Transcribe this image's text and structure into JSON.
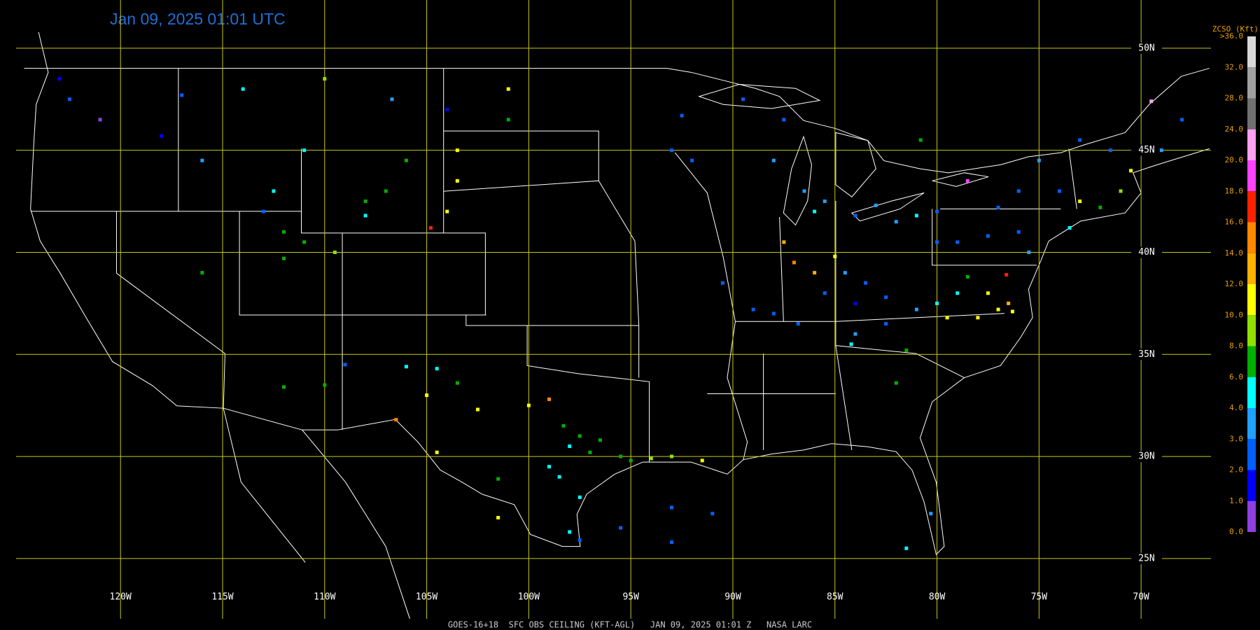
{
  "title": "Jan 09, 2025 01:01 UTC",
  "caption": "GOES-16+18  SFC OBS CEILING (KFT-AGL)   JAN 09, 2025 01:01 Z   NASA LARC",
  "map": {
    "lon_ticks": [
      {
        "value": -120,
        "label": "120W"
      },
      {
        "value": -115,
        "label": "115W"
      },
      {
        "value": -110,
        "label": "110W"
      },
      {
        "value": -105,
        "label": "105W"
      },
      {
        "value": -100,
        "label": "100W"
      },
      {
        "value": -95,
        "label": "95W"
      },
      {
        "value": -90,
        "label": "90W"
      },
      {
        "value": -85,
        "label": "85W"
      },
      {
        "value": -80,
        "label": "80W"
      },
      {
        "value": -75,
        "label": "75W"
      },
      {
        "value": -70,
        "label": "70W"
      }
    ],
    "lat_ticks": [
      {
        "value": 50,
        "label": "50N"
      },
      {
        "value": 45,
        "label": "45N"
      },
      {
        "value": 40,
        "label": "40N"
      },
      {
        "value": 35,
        "label": "35N"
      },
      {
        "value": 30,
        "label": "30N"
      },
      {
        "value": 25,
        "label": "25N"
      }
    ]
  },
  "legend": {
    "title": "ZCSO (Kft)",
    "ticks": [
      {
        "value": 36,
        "label": ">36.0"
      },
      {
        "value": 32,
        "label": "32.0"
      },
      {
        "value": 28,
        "label": "28.0"
      },
      {
        "value": 24,
        "label": "24.0"
      },
      {
        "value": 20,
        "label": "20.0"
      },
      {
        "value": 18,
        "label": "18.0"
      },
      {
        "value": 16,
        "label": "16.0"
      },
      {
        "value": 14,
        "label": "14.0"
      },
      {
        "value": 12,
        "label": "12.0"
      },
      {
        "value": 10,
        "label": "10.0"
      },
      {
        "value": 8,
        "label": "8.0"
      },
      {
        "value": 6,
        "label": "6.0"
      },
      {
        "value": 4,
        "label": "4.0"
      },
      {
        "value": 3,
        "label": "3.0"
      },
      {
        "value": 2,
        "label": "2.0"
      },
      {
        "value": 1,
        "label": "1.0"
      },
      {
        "value": 0,
        "label": "0.0"
      }
    ],
    "colors": [
      "#d8d8d8",
      "#a0a0a0",
      "#707070",
      "#ffa0f0",
      "#ff40ff",
      "#ff2000",
      "#ff8800",
      "#ffb000",
      "#ffff00",
      "#90e000",
      "#00b000",
      "#00ffff",
      "#20a0ff",
      "#0060ff",
      "#0000ff",
      "#9040e0"
    ]
  },
  "stations": {
    "lon": [
      -98.3,
      -97.5,
      -96.5,
      -95.5,
      -95.0,
      -97.0,
      -98.0,
      -99.0,
      -98.5,
      -97.5,
      -98.0,
      -97.5,
      -94.0,
      -93.0,
      -91.5,
      -100.0,
      -99.0,
      -102.5,
      -106.5,
      -104.5,
      -101.5,
      -109.0,
      -106.0,
      -104.5,
      -103.5,
      -105.0,
      -112.0,
      -110.0,
      -112.0,
      -111.0,
      -112.0,
      -116.0,
      -108.0,
      -107.0,
      -106.0,
      -104.0,
      -103.5,
      -104.8,
      -108.0,
      -109.5,
      -111.0,
      -112.5,
      -113.0,
      -116.0,
      -118.0,
      -121.0,
      -122.5,
      -123.0,
      -117.0,
      -114.0,
      -110.0,
      -106.7,
      -104.0,
      -101.0,
      -101.0,
      -103.5,
      -92.5,
      -93.0,
      -92.0,
      -89.5,
      -87.5,
      -88.0,
      -86.5,
      -86.0,
      -85.5,
      -84.0,
      -83.0,
      -82.0,
      -81.0,
      -80.0,
      -87.5,
      -87.0,
      -86.0,
      -85.0,
      -84.5,
      -83.5,
      -82.5,
      -84.0,
      -85.5,
      -86.8,
      -88.0,
      -89.0,
      -90.5,
      -84.0,
      -82.5,
      -81.0,
      -80.0,
      -79.0,
      -78.5,
      -77.5,
      -77.0,
      -76.5,
      -78.0,
      -79.5,
      -76.6,
      -76.3,
      -81.5,
      -84.2,
      -80.0,
      -79.0,
      -77.5,
      -76.0,
      -75.5,
      -77.0,
      -76.0,
      -74.0,
      -73.0,
      -72.0,
      -71.0,
      -70.5,
      -69.0,
      -68.0,
      -71.5,
      -73.5,
      -73.0,
      -75.0,
      -78.5,
      -80.8,
      -69.5,
      -82.0,
      -80.3,
      -81.5,
      -93.0,
      -95.5,
      -93.0,
      -91.0,
      -101.5
    ],
    "lat": [
      31.5,
      31.0,
      30.8,
      30.0,
      29.8,
      30.2,
      30.5,
      29.5,
      29.0,
      28.0,
      26.3,
      25.9,
      29.9,
      30.0,
      29.8,
      32.5,
      32.8,
      32.3,
      31.8,
      30.2,
      27.0,
      34.5,
      34.4,
      34.3,
      33.6,
      33.0,
      33.4,
      33.5,
      41.0,
      40.5,
      39.7,
      39.0,
      42.5,
      43.0,
      44.5,
      42.0,
      43.5,
      41.2,
      41.8,
      40.0,
      45.0,
      43.0,
      42.0,
      44.5,
      45.7,
      46.5,
      47.5,
      48.5,
      47.7,
      48.0,
      48.5,
      47.5,
      47.0,
      48.0,
      46.5,
      45.0,
      46.7,
      45.0,
      44.5,
      47.5,
      46.5,
      44.5,
      43.0,
      42.0,
      42.5,
      41.8,
      42.3,
      41.5,
      41.8,
      42.0,
      40.5,
      39.5,
      39.0,
      39.8,
      39.0,
      38.5,
      37.8,
      37.5,
      38.0,
      36.5,
      37.0,
      37.2,
      38.5,
      36.0,
      36.5,
      37.2,
      37.5,
      38.0,
      38.8,
      38.0,
      37.2,
      37.5,
      36.8,
      36.8,
      38.9,
      37.1,
      35.2,
      35.5,
      40.5,
      40.5,
      40.8,
      41.0,
      40.0,
      42.2,
      43.0,
      43.0,
      42.5,
      42.2,
      43.0,
      44.0,
      45.0,
      46.5,
      45.0,
      41.2,
      45.5,
      44.5,
      43.5,
      45.5,
      47.4,
      33.6,
      27.2,
      25.5,
      27.5,
      26.5,
      25.8,
      27.2,
      28.9
    ],
    "ceiling": [
      7,
      7,
      7,
      7,
      7,
      6.5,
      5,
      5,
      4.5,
      5,
      4.5,
      2.5,
      8.5,
      9,
      10,
      11,
      14,
      10,
      14,
      10,
      10,
      2.5,
      4.5,
      4.5,
      7,
      10,
      7,
      6.5,
      7,
      7,
      7,
      7,
      7,
      7,
      7,
      10,
      10,
      17,
      4.5,
      9,
      4.5,
      4.5,
      2.5,
      3.5,
      1.5,
      0.5,
      2.5,
      1.5,
      2,
      4.5,
      8,
      3.5,
      1,
      10,
      7,
      10,
      2,
      2,
      2,
      2,
      2.5,
      3.5,
      3.5,
      4.5,
      3.5,
      2.5,
      3.5,
      3.5,
      4.5,
      2.5,
      12,
      15,
      13,
      10,
      3.5,
      2.5,
      2,
      1.5,
      2.5,
      2.5,
      2,
      2.5,
      2.5,
      3.5,
      2,
      3.5,
      4.5,
      4.5,
      7,
      10,
      11,
      12,
      11,
      10,
      16,
      11,
      7,
      4.5,
      2.5,
      2.5,
      2,
      2,
      3,
      2,
      2,
      2.5,
      10,
      7,
      8,
      10,
      3.5,
      2,
      2,
      4.5,
      2.5,
      3.5,
      18,
      7,
      22,
      7,
      3.5,
      4.5,
      2.5,
      2.5,
      2.5,
      2.5,
      6
    ]
  }
}
